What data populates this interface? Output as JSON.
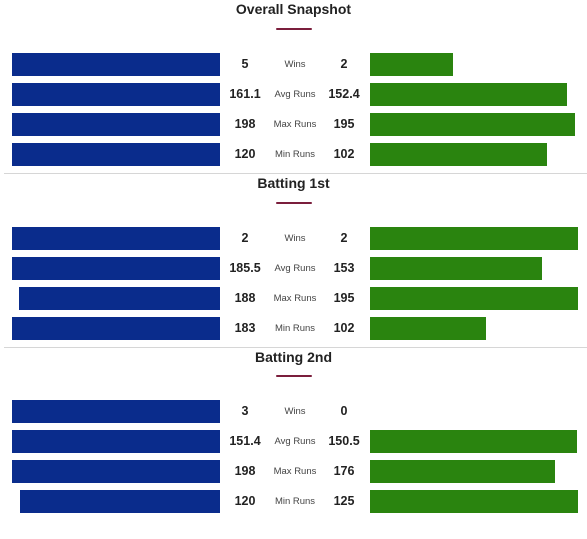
{
  "colors": {
    "team_a_bar": "#0a2c8c",
    "team_b_bar": "#2a840f",
    "title_underline": "#7b1e3c",
    "divider": "#d6d6d6"
  },
  "sections": [
    {
      "title": "Overall Snapshot",
      "rows": [
        {
          "label": "Wins",
          "left": "5",
          "right": "2",
          "left_value": 5,
          "right_value": 2
        },
        {
          "label": "Avg Runs",
          "left": "161.1",
          "right": "152.4",
          "left_value": 161.1,
          "right_value": 152.4
        },
        {
          "label": "Max Runs",
          "left": "198",
          "right": "195",
          "left_value": 198,
          "right_value": 195
        },
        {
          "label": "Min Runs",
          "left": "120",
          "right": "102",
          "left_value": 120,
          "right_value": 102
        }
      ]
    },
    {
      "title": "Batting 1st",
      "rows": [
        {
          "label": "Wins",
          "left": "2",
          "right": "2",
          "left_value": 2,
          "right_value": 2
        },
        {
          "label": "Avg Runs",
          "left": "185.5",
          "right": "153",
          "left_value": 185.5,
          "right_value": 153
        },
        {
          "label": "Max Runs",
          "left": "188",
          "right": "195",
          "left_value": 188,
          "right_value": 195
        },
        {
          "label": "Min Runs",
          "left": "183",
          "right": "102",
          "left_value": 183,
          "right_value": 102
        }
      ]
    },
    {
      "title": "Batting 2nd",
      "rows": [
        {
          "label": "Wins",
          "left": "3",
          "right": "0",
          "left_value": 3,
          "right_value": 0
        },
        {
          "label": "Avg Runs",
          "left": "151.4",
          "right": "150.5",
          "left_value": 151.4,
          "right_value": 150.5
        },
        {
          "label": "Max Runs",
          "left": "198",
          "right": "176",
          "left_value": 198,
          "right_value": 176
        },
        {
          "label": "Min Runs",
          "left": "120",
          "right": "125",
          "left_value": 120,
          "right_value": 125
        }
      ]
    }
  ]
}
